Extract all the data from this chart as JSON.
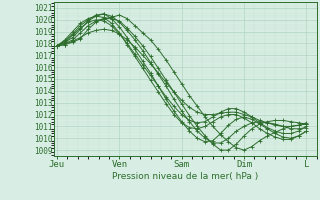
{
  "xlabel": "Pression niveau de la mer( hPa )",
  "bg_color": "#d8ede4",
  "grid_major_color": "#b0d4c0",
  "grid_minor_color": "#c8e4d4",
  "line_color": "#2d6e2d",
  "ylim": [
    1008.5,
    1021.5
  ],
  "yticks": [
    1009,
    1010,
    1011,
    1012,
    1013,
    1014,
    1015,
    1016,
    1017,
    1018,
    1019,
    1020,
    1021
  ],
  "xtick_labels": [
    "Jeu",
    "Ven",
    "Sam",
    "Dim",
    "L"
  ],
  "xtick_positions": [
    0,
    48,
    96,
    144,
    192
  ],
  "xlim": [
    -2,
    200
  ],
  "lines": [
    [
      0,
      1017.8,
      6,
      1017.9,
      12,
      1018.1,
      18,
      1018.4,
      24,
      1019.2,
      30,
      1019.8,
      36,
      1020.1,
      42,
      1020.2,
      48,
      1020.4,
      54,
      1020.1,
      60,
      1019.5,
      66,
      1018.9,
      72,
      1018.3,
      78,
      1017.5,
      84,
      1016.6,
      90,
      1015.6,
      96,
      1014.6,
      102,
      1013.6,
      108,
      1012.7,
      114,
      1011.8,
      120,
      1011.0,
      126,
      1010.3,
      132,
      1009.7,
      138,
      1009.2,
      144,
      1009.0,
      150,
      1009.3,
      156,
      1009.8,
      162,
      1010.2,
      168,
      1010.5,
      174,
      1010.8,
      180,
      1011.0,
      186,
      1011.1,
      192,
      1011.2
    ],
    [
      0,
      1017.8,
      6,
      1018.0,
      12,
      1018.3,
      18,
      1018.9,
      24,
      1019.5,
      30,
      1019.9,
      36,
      1020.1,
      42,
      1020.1,
      48,
      1019.9,
      54,
      1019.3,
      60,
      1018.6,
      66,
      1017.8,
      72,
      1016.9,
      78,
      1015.9,
      84,
      1014.9,
      90,
      1013.9,
      96,
      1012.9,
      102,
      1011.9,
      108,
      1011.0,
      114,
      1010.2,
      120,
      1009.5,
      126,
      1009.0,
      132,
      1009.0,
      138,
      1009.5,
      144,
      1010.2,
      150,
      1010.8,
      156,
      1011.2,
      162,
      1011.4,
      168,
      1011.5,
      174,
      1011.5,
      180,
      1011.4,
      186,
      1011.3,
      192,
      1011.2
    ],
    [
      0,
      1017.8,
      6,
      1018.1,
      12,
      1018.5,
      18,
      1019.2,
      24,
      1019.9,
      30,
      1020.3,
      36,
      1020.5,
      42,
      1020.3,
      48,
      1019.8,
      54,
      1019.1,
      60,
      1018.3,
      66,
      1017.4,
      72,
      1016.4,
      78,
      1015.4,
      84,
      1014.4,
      90,
      1013.3,
      96,
      1012.3,
      102,
      1011.4,
      108,
      1010.6,
      114,
      1010.0,
      120,
      1009.6,
      126,
      1009.6,
      132,
      1010.0,
      138,
      1010.6,
      144,
      1011.0,
      150,
      1011.3,
      156,
      1011.4,
      162,
      1011.3,
      168,
      1011.2,
      174,
      1011.0,
      180,
      1010.8,
      186,
      1010.8,
      192,
      1010.9
    ],
    [
      0,
      1017.8,
      6,
      1018.2,
      12,
      1018.8,
      18,
      1019.5,
      24,
      1020.0,
      30,
      1020.4,
      36,
      1020.5,
      42,
      1020.1,
      48,
      1019.4,
      54,
      1018.5,
      60,
      1017.5,
      66,
      1016.5,
      72,
      1015.5,
      78,
      1014.4,
      84,
      1013.3,
      90,
      1012.3,
      96,
      1011.4,
      102,
      1010.6,
      108,
      1010.0,
      114,
      1009.7,
      120,
      1009.8,
      126,
      1010.4,
      132,
      1011.1,
      138,
      1011.6,
      144,
      1011.8,
      150,
      1011.6,
      156,
      1011.2,
      162,
      1010.8,
      168,
      1010.4,
      174,
      1010.1,
      180,
      1010.0,
      186,
      1010.2,
      192,
      1010.6
    ],
    [
      0,
      1017.8,
      6,
      1018.3,
      12,
      1019.0,
      18,
      1019.7,
      24,
      1020.1,
      30,
      1020.3,
      36,
      1020.2,
      42,
      1019.7,
      48,
      1018.9,
      54,
      1017.9,
      60,
      1016.9,
      66,
      1015.9,
      72,
      1014.9,
      78,
      1013.9,
      84,
      1012.9,
      90,
      1012.0,
      96,
      1011.3,
      102,
      1010.9,
      108,
      1010.8,
      114,
      1011.0,
      120,
      1011.4,
      126,
      1011.8,
      132,
      1012.0,
      138,
      1012.0,
      144,
      1011.7,
      150,
      1011.3,
      156,
      1010.8,
      162,
      1010.4,
      168,
      1010.1,
      174,
      1009.9,
      180,
      1009.9,
      186,
      1010.2,
      192,
      1010.6
    ],
    [
      0,
      1017.8,
      6,
      1018.1,
      12,
      1018.7,
      18,
      1019.3,
      24,
      1019.8,
      30,
      1020.0,
      36,
      1019.9,
      42,
      1019.5,
      48,
      1018.8,
      54,
      1018.0,
      60,
      1017.1,
      66,
      1016.2,
      72,
      1015.3,
      78,
      1014.4,
      84,
      1013.5,
      90,
      1012.7,
      96,
      1012.0,
      102,
      1011.5,
      108,
      1011.3,
      114,
      1011.4,
      120,
      1011.8,
      126,
      1012.2,
      132,
      1012.5,
      138,
      1012.5,
      144,
      1012.2,
      150,
      1011.8,
      156,
      1011.3,
      162,
      1010.9,
      168,
      1010.6,
      174,
      1010.4,
      180,
      1010.4,
      186,
      1010.6,
      192,
      1011.0
    ],
    [
      0,
      1017.8,
      6,
      1017.9,
      12,
      1018.2,
      18,
      1018.5,
      24,
      1018.9,
      30,
      1019.1,
      36,
      1019.2,
      42,
      1019.1,
      48,
      1018.8,
      54,
      1018.3,
      60,
      1017.7,
      66,
      1017.0,
      72,
      1016.3,
      78,
      1015.5,
      84,
      1014.7,
      90,
      1013.9,
      96,
      1013.2,
      102,
      1012.6,
      108,
      1012.2,
      114,
      1012.0,
      120,
      1012.0,
      126,
      1012.1,
      132,
      1012.2,
      138,
      1012.2,
      144,
      1012.0,
      150,
      1011.8,
      156,
      1011.5,
      162,
      1011.3,
      168,
      1011.1,
      174,
      1011.0,
      180,
      1011.0,
      186,
      1011.1,
      192,
      1011.3
    ]
  ]
}
